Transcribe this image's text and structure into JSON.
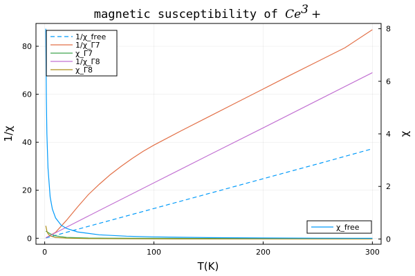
{
  "chart_data": {
    "type": "line",
    "title_prefix": "magnetic susceptibility of ",
    "title_math": "Ce",
    "title_superscript": "3",
    "title_suffix": "+",
    "xlabel": "T(K)",
    "ylabel_left": "1/χ",
    "ylabel_right": "χ",
    "xlim": [
      -8,
      308
    ],
    "ylim_left": [
      -2.5,
      89.5
    ],
    "ylim_right": [
      -0.2,
      8.2
    ],
    "x_ticks": [
      0,
      100,
      200,
      300
    ],
    "x_tick_labels": [
      "0",
      "100",
      "200",
      "300"
    ],
    "y_left_ticks": [
      0,
      20,
      40,
      60,
      80
    ],
    "y_left_tick_labels": [
      "0",
      "20",
      "40",
      "60",
      "80"
    ],
    "y_right_ticks": [
      0,
      2,
      4,
      6,
      8
    ],
    "y_right_tick_labels": [
      "0",
      "2",
      "4",
      "6",
      "8"
    ],
    "grid": true,
    "legend_left": {
      "placement": "top-left",
      "entries": [
        "1/χ_free",
        "1/χ_Γ7",
        "χ_Γ7",
        "1/χ_Γ8",
        "χ_Γ8"
      ]
    },
    "legend_right": {
      "placement": "bottom-right",
      "entries": [
        "χ_free"
      ]
    },
    "series": [
      {
        "name": "1/χ_free",
        "axis": "left",
        "color": "#009AFA",
        "dash": true,
        "x": [
          1,
          50,
          100,
          150,
          200,
          250,
          300
        ],
        "y": [
          0.12,
          6.2,
          12.4,
          18.6,
          24.8,
          31.0,
          37.3
        ]
      },
      {
        "name": "1/χ_Γ7",
        "axis": "left",
        "color": "#E26F46",
        "dash": false,
        "x": [
          1,
          10,
          20,
          30,
          40,
          50,
          60,
          70,
          80,
          90,
          100,
          125,
          150,
          175,
          200,
          225,
          250,
          275,
          300
        ],
        "y": [
          0.2,
          2.5,
          7.5,
          13.0,
          18.2,
          22.5,
          26.5,
          30.0,
          33.2,
          36.2,
          38.8,
          44.8,
          50.6,
          56.4,
          62.2,
          68.0,
          73.7,
          79.4,
          86.9
        ]
      },
      {
        "name": "χ_Γ7",
        "axis": "right",
        "color": "#3DA44D",
        "dash": false,
        "x": [
          1,
          3,
          5,
          10,
          20,
          40,
          60,
          100,
          150,
          200,
          250,
          300
        ],
        "y": [
          0.3,
          0.25,
          0.2,
          0.12,
          0.06,
          0.035,
          0.03,
          0.025,
          0.02,
          0.018,
          0.015,
          0.012
        ]
      },
      {
        "name": "1/χ_Γ8",
        "axis": "left",
        "color": "#C271D2",
        "dash": false,
        "x": [
          1,
          50,
          100,
          150,
          200,
          250,
          300
        ],
        "y": [
          0.2,
          11.6,
          23.1,
          34.6,
          46.0,
          57.5,
          69.0
        ]
      },
      {
        "name": "χ_Γ8",
        "axis": "right",
        "color": "#AC8D18",
        "dash": false,
        "x": [
          1,
          1.5,
          2,
          3,
          5,
          10,
          20,
          40,
          100,
          200,
          300
        ],
        "y": [
          0.5,
          0.4,
          0.3,
          0.2,
          0.12,
          0.06,
          0.03,
          0.015,
          0.006,
          0.003,
          0.002
        ]
      },
      {
        "name": "χ_free",
        "axis": "right",
        "color": "#009AFA",
        "dash": false,
        "x": [
          1,
          1.5,
          2,
          3,
          5,
          7,
          10,
          15,
          20,
          30,
          50,
          75,
          100,
          150,
          200,
          250,
          300
        ],
        "y": [
          8.0,
          5.4,
          4.0,
          2.7,
          1.6,
          1.14,
          0.8,
          0.53,
          0.4,
          0.27,
          0.16,
          0.107,
          0.08,
          0.053,
          0.04,
          0.032,
          0.027
        ]
      }
    ]
  }
}
